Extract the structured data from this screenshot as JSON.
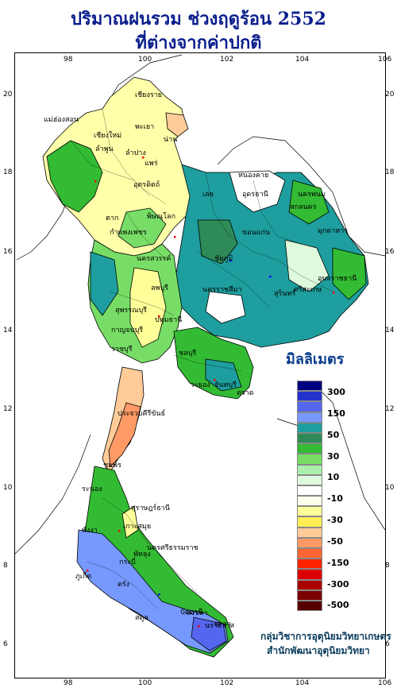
{
  "title": {
    "line1": "ปริมาณฝนรวม ช่วงฤดูร้อน 2552",
    "line2": "ที่ต่างจากค่าปกติ"
  },
  "axes": {
    "top_lon": [
      "98",
      "100",
      "102",
      "104",
      "106"
    ],
    "bottom_lon": [
      "98",
      "100",
      "102",
      "104",
      "106"
    ],
    "left_lat": [
      "20",
      "18",
      "16",
      "14",
      "12",
      "10",
      "8",
      "6"
    ],
    "right_lat": [
      "20",
      "18",
      "16",
      "14",
      "12",
      "10",
      "8",
      "6"
    ]
  },
  "legend": {
    "title": "มิลลิเมตร",
    "colors": [
      "#000080",
      "#2233cc",
      "#5566ee",
      "#7799ff",
      "#1e9e9e",
      "#2e8b57",
      "#33bb33",
      "#77dd66",
      "#aaf0aa",
      "#ddfadd",
      "#ffffff",
      "#ffffee",
      "#ffff99",
      "#ffee55",
      "#ffcc99",
      "#ff9966",
      "#ff6633",
      "#ff2200",
      "#dd0000",
      "#aa0000",
      "#7a0000",
      "#550000"
    ],
    "labels": [
      "300",
      "150",
      "50",
      "30",
      "10",
      "-10",
      "-30",
      "-50",
      "-150",
      "-300",
      "-500"
    ]
  },
  "credit": {
    "line1": "กลุ่มวิชาการอุตุนิยมวิทยาเกษตร",
    "line2": "สำนักพัฒนาอุตุนิยมวิทยา"
  },
  "places": [
    "เชียงราย",
    "แม่ฮ่องสอน",
    "เชียงใหม่",
    "พะเยา",
    "ลำพูน",
    "น่าน",
    "ลำปาง",
    "แพร่",
    "อุตรดิตถ์",
    "ตาก",
    "หนองคาย",
    "อุดรธานี",
    "นครพนม",
    "สกลนคร",
    "มุกดาหาร",
    "เลย",
    "ขอนแก่น",
    "พิษณุโลก",
    "กำแพงเพชร",
    "นครสวรรค์",
    "ชัยภูมิ",
    "อุบลราชธานี",
    "ลพบุรี",
    "นครราชสีมา",
    "สุรินทร์",
    "ศรีสะเกษ",
    "กาญจนบุรี",
    "สุพรรณบุรี",
    "ปทุมธานี",
    "ราชบุรี",
    "ชลบุรี",
    "ระยอง",
    "จันทบุรี",
    "ตราด",
    "ประจวบคีรีขันธ์",
    "ชุมพร",
    "ระนอง",
    "สุราษฎร์ธานี",
    "นครศรีธรรมราช",
    "กระบี่",
    "พังงา",
    "ภูเก็ต",
    "ตรัง",
    "พัทลุง",
    "สงขลา",
    "สตูล",
    "ปัตตานี",
    "นราธิวาส",
    "ยะลา",
    "เกาะสมุย"
  ]
}
